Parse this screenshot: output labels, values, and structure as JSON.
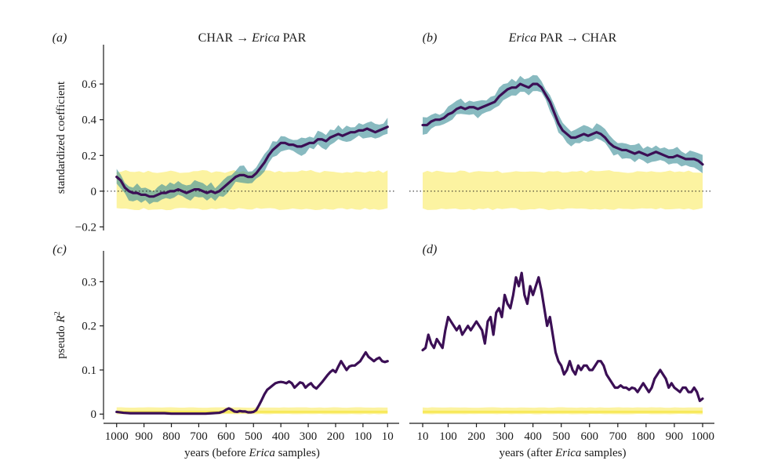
{
  "chart_data": [
    {
      "id": "a",
      "panel_label": "(a)",
      "type": "line",
      "title": [
        "CHAR → ",
        "Erica",
        " PAR"
      ],
      "ylabel": "standardized coefficient",
      "ylim": [
        -0.22,
        0.82
      ],
      "yticks": [
        -0.2,
        0,
        0.2,
        0.4,
        0.6
      ],
      "yticklabels": [
        "−0.2",
        "0",
        "0.2",
        "0.4",
        "0.6"
      ],
      "xlim": [
        1025,
        -15
      ],
      "xticks": [
        1000,
        900,
        800,
        700,
        600,
        500,
        400,
        300,
        200,
        100,
        10
      ],
      "xticklabels": [
        "1000",
        "900",
        "800",
        "700",
        "600",
        "500",
        "400",
        "300",
        "200",
        "100",
        "10"
      ],
      "reference_line": 0,
      "null_band": {
        "lower": -0.1,
        "upper": 0.11
      },
      "confidence_halfwidth": 0.04,
      "series_points": [
        [
          1000,
          0.08
        ],
        [
          985,
          0.06
        ],
        [
          970,
          0.02
        ],
        [
          955,
          0.0
        ],
        [
          940,
          -0.01
        ],
        [
          925,
          -0.01
        ],
        [
          910,
          -0.02
        ],
        [
          895,
          -0.02
        ],
        [
          880,
          -0.03
        ],
        [
          865,
          -0.03
        ],
        [
          850,
          -0.02
        ],
        [
          835,
          -0.01
        ],
        [
          820,
          -0.01
        ],
        [
          805,
          0.0
        ],
        [
          790,
          0.0
        ],
        [
          775,
          0.01
        ],
        [
          760,
          0.0
        ],
        [
          745,
          -0.01
        ],
        [
          730,
          0.0
        ],
        [
          715,
          0.01
        ],
        [
          700,
          0.01
        ],
        [
          685,
          0.0
        ],
        [
          670,
          -0.01
        ],
        [
          655,
          0.0
        ],
        [
          640,
          -0.01
        ],
        [
          625,
          0.0
        ],
        [
          610,
          0.02
        ],
        [
          595,
          0.04
        ],
        [
          580,
          0.06
        ],
        [
          565,
          0.08
        ],
        [
          550,
          0.09
        ],
        [
          535,
          0.09
        ],
        [
          520,
          0.08
        ],
        [
          505,
          0.08
        ],
        [
          490,
          0.1
        ],
        [
          475,
          0.13
        ],
        [
          460,
          0.16
        ],
        [
          445,
          0.2
        ],
        [
          430,
          0.23
        ],
        [
          415,
          0.25
        ],
        [
          400,
          0.27
        ],
        [
          385,
          0.27
        ],
        [
          370,
          0.26
        ],
        [
          355,
          0.26
        ],
        [
          340,
          0.25
        ],
        [
          325,
          0.25
        ],
        [
          310,
          0.26
        ],
        [
          295,
          0.27
        ],
        [
          280,
          0.27
        ],
        [
          265,
          0.29
        ],
        [
          250,
          0.29
        ],
        [
          235,
          0.28
        ],
        [
          220,
          0.3
        ],
        [
          205,
          0.31
        ],
        [
          190,
          0.32
        ],
        [
          175,
          0.31
        ],
        [
          160,
          0.32
        ],
        [
          145,
          0.33
        ],
        [
          130,
          0.33
        ],
        [
          115,
          0.34
        ],
        [
          100,
          0.34
        ],
        [
          85,
          0.35
        ],
        [
          70,
          0.34
        ],
        [
          55,
          0.33
        ],
        [
          40,
          0.34
        ],
        [
          25,
          0.35
        ],
        [
          10,
          0.36
        ]
      ]
    },
    {
      "id": "b",
      "panel_label": "(b)",
      "type": "line",
      "title": [
        "",
        "Erica",
        " PAR → CHAR"
      ],
      "ylim": [
        -0.22,
        0.82
      ],
      "yticks": [
        -0.2,
        0,
        0.2,
        0.4,
        0.6
      ],
      "xlim": [
        -15,
        1025
      ],
      "xticks": [
        10,
        100,
        200,
        300,
        400,
        500,
        600,
        700,
        800,
        900,
        1000
      ],
      "xticklabels": [
        "10",
        "100",
        "200",
        "300",
        "400",
        "500",
        "600",
        "700",
        "800",
        "900",
        "1000"
      ],
      "reference_line": 0,
      "null_band": {
        "lower": -0.1,
        "upper": 0.11
      },
      "confidence_halfwidth": 0.04,
      "series_points": [
        [
          10,
          0.37
        ],
        [
          25,
          0.37
        ],
        [
          40,
          0.39
        ],
        [
          55,
          0.4
        ],
        [
          70,
          0.4
        ],
        [
          85,
          0.41
        ],
        [
          100,
          0.43
        ],
        [
          115,
          0.44
        ],
        [
          130,
          0.46
        ],
        [
          145,
          0.47
        ],
        [
          160,
          0.46
        ],
        [
          175,
          0.47
        ],
        [
          190,
          0.47
        ],
        [
          205,
          0.46
        ],
        [
          220,
          0.47
        ],
        [
          235,
          0.48
        ],
        [
          250,
          0.49
        ],
        [
          265,
          0.5
        ],
        [
          280,
          0.53
        ],
        [
          295,
          0.55
        ],
        [
          310,
          0.57
        ],
        [
          325,
          0.58
        ],
        [
          340,
          0.58
        ],
        [
          355,
          0.6
        ],
        [
          370,
          0.59
        ],
        [
          385,
          0.58
        ],
        [
          400,
          0.6
        ],
        [
          415,
          0.6
        ],
        [
          430,
          0.58
        ],
        [
          445,
          0.54
        ],
        [
          460,
          0.5
        ],
        [
          475,
          0.44
        ],
        [
          490,
          0.38
        ],
        [
          505,
          0.34
        ],
        [
          520,
          0.32
        ],
        [
          535,
          0.3
        ],
        [
          550,
          0.3
        ],
        [
          565,
          0.31
        ],
        [
          580,
          0.32
        ],
        [
          595,
          0.31
        ],
        [
          610,
          0.32
        ],
        [
          625,
          0.33
        ],
        [
          640,
          0.32
        ],
        [
          655,
          0.3
        ],
        [
          670,
          0.27
        ],
        [
          685,
          0.25
        ],
        [
          700,
          0.24
        ],
        [
          715,
          0.23
        ],
        [
          730,
          0.23
        ],
        [
          745,
          0.22
        ],
        [
          760,
          0.21
        ],
        [
          775,
          0.22
        ],
        [
          790,
          0.21
        ],
        [
          805,
          0.2
        ],
        [
          820,
          0.21
        ],
        [
          835,
          0.22
        ],
        [
          850,
          0.21
        ],
        [
          865,
          0.2
        ],
        [
          880,
          0.19
        ],
        [
          895,
          0.19
        ],
        [
          910,
          0.2
        ],
        [
          925,
          0.19
        ],
        [
          940,
          0.18
        ],
        [
          955,
          0.18
        ],
        [
          970,
          0.18
        ],
        [
          985,
          0.17
        ],
        [
          1000,
          0.15
        ]
      ]
    },
    {
      "id": "c",
      "panel_label": "(c)",
      "type": "line",
      "ylabel_prefix": "pseudo ",
      "ylabel_var": "R",
      "ylabel_sup": "2",
      "ylim": [
        -0.012,
        0.37
      ],
      "yticks": [
        0,
        0.1,
        0.2,
        0.3
      ],
      "yticklabels": [
        "0",
        "0.1",
        "0.2",
        "0.3"
      ],
      "xlim": [
        1025,
        -15
      ],
      "xticks": [
        1000,
        900,
        800,
        700,
        600,
        500,
        400,
        300,
        200,
        100,
        10
      ],
      "xticklabels": [
        "1000",
        "900",
        "800",
        "700",
        "600",
        "500",
        "400",
        "300",
        "200",
        "100",
        "10"
      ],
      "xlabel": [
        "years (before ",
        "Erica",
        " samples)"
      ],
      "null_band": {
        "lower": 0.0,
        "upper": 0.015,
        "center": 0.005
      },
      "series_points": [
        [
          1000,
          0.005
        ],
        [
          975,
          0.003
        ],
        [
          950,
          0.002
        ],
        [
          925,
          0.002
        ],
        [
          900,
          0.002
        ],
        [
          875,
          0.002
        ],
        [
          850,
          0.002
        ],
        [
          825,
          0.002
        ],
        [
          800,
          0.001
        ],
        [
          775,
          0.001
        ],
        [
          750,
          0.001
        ],
        [
          725,
          0.001
        ],
        [
          700,
          0.001
        ],
        [
          675,
          0.001
        ],
        [
          650,
          0.002
        ],
        [
          625,
          0.003
        ],
        [
          610,
          0.006
        ],
        [
          600,
          0.01
        ],
        [
          590,
          0.013
        ],
        [
          580,
          0.01
        ],
        [
          570,
          0.006
        ],
        [
          560,
          0.005
        ],
        [
          550,
          0.007
        ],
        [
          540,
          0.006
        ],
        [
          530,
          0.006
        ],
        [
          520,
          0.004
        ],
        [
          510,
          0.004
        ],
        [
          500,
          0.005
        ],
        [
          490,
          0.009
        ],
        [
          480,
          0.02
        ],
        [
          470,
          0.032
        ],
        [
          460,
          0.045
        ],
        [
          450,
          0.055
        ],
        [
          440,
          0.06
        ],
        [
          430,
          0.065
        ],
        [
          420,
          0.07
        ],
        [
          410,
          0.072
        ],
        [
          400,
          0.073
        ],
        [
          390,
          0.072
        ],
        [
          380,
          0.07
        ],
        [
          370,
          0.074
        ],
        [
          360,
          0.07
        ],
        [
          350,
          0.06
        ],
        [
          340,
          0.066
        ],
        [
          330,
          0.072
        ],
        [
          320,
          0.07
        ],
        [
          310,
          0.06
        ],
        [
          300,
          0.066
        ],
        [
          290,
          0.07
        ],
        [
          280,
          0.062
        ],
        [
          270,
          0.058
        ],
        [
          260,
          0.065
        ],
        [
          250,
          0.072
        ],
        [
          240,
          0.08
        ],
        [
          230,
          0.088
        ],
        [
          220,
          0.095
        ],
        [
          210,
          0.1
        ],
        [
          200,
          0.095
        ],
        [
          190,
          0.108
        ],
        [
          180,
          0.12
        ],
        [
          170,
          0.11
        ],
        [
          160,
          0.1
        ],
        [
          150,
          0.108
        ],
        [
          140,
          0.11
        ],
        [
          130,
          0.11
        ],
        [
          120,
          0.115
        ],
        [
          110,
          0.12
        ],
        [
          100,
          0.13
        ],
        [
          90,
          0.14
        ],
        [
          80,
          0.13
        ],
        [
          70,
          0.125
        ],
        [
          60,
          0.12
        ],
        [
          50,
          0.125
        ],
        [
          40,
          0.128
        ],
        [
          30,
          0.12
        ],
        [
          20,
          0.118
        ],
        [
          10,
          0.12
        ]
      ]
    },
    {
      "id": "d",
      "panel_label": "(d)",
      "type": "line",
      "ylim": [
        -0.012,
        0.37
      ],
      "yticks": [
        0,
        0.1,
        0.2,
        0.3
      ],
      "xlim": [
        -15,
        1025
      ],
      "xticks": [
        10,
        100,
        200,
        300,
        400,
        500,
        600,
        700,
        800,
        900,
        1000
      ],
      "xticklabels": [
        "10",
        "100",
        "200",
        "300",
        "400",
        "500",
        "600",
        "700",
        "800",
        "900",
        "1000"
      ],
      "xlabel": [
        "years (after ",
        "Erica",
        " samples)"
      ],
      "null_band": {
        "lower": 0.0,
        "upper": 0.015,
        "center": 0.005
      },
      "series_points": [
        [
          10,
          0.145
        ],
        [
          20,
          0.15
        ],
        [
          30,
          0.18
        ],
        [
          40,
          0.16
        ],
        [
          50,
          0.15
        ],
        [
          60,
          0.17
        ],
        [
          70,
          0.16
        ],
        [
          80,
          0.15
        ],
        [
          90,
          0.19
        ],
        [
          100,
          0.22
        ],
        [
          110,
          0.21
        ],
        [
          120,
          0.2
        ],
        [
          130,
          0.19
        ],
        [
          140,
          0.2
        ],
        [
          150,
          0.18
        ],
        [
          160,
          0.19
        ],
        [
          170,
          0.2
        ],
        [
          180,
          0.19
        ],
        [
          190,
          0.2
        ],
        [
          200,
          0.21
        ],
        [
          210,
          0.2
        ],
        [
          220,
          0.19
        ],
        [
          230,
          0.16
        ],
        [
          240,
          0.21
        ],
        [
          250,
          0.22
        ],
        [
          260,
          0.18
        ],
        [
          270,
          0.23
        ],
        [
          280,
          0.24
        ],
        [
          290,
          0.22
        ],
        [
          300,
          0.27
        ],
        [
          310,
          0.25
        ],
        [
          320,
          0.24
        ],
        [
          330,
          0.27
        ],
        [
          340,
          0.31
        ],
        [
          350,
          0.29
        ],
        [
          360,
          0.32
        ],
        [
          370,
          0.27
        ],
        [
          380,
          0.25
        ],
        [
          390,
          0.29
        ],
        [
          400,
          0.27
        ],
        [
          410,
          0.29
        ],
        [
          420,
          0.31
        ],
        [
          430,
          0.28
        ],
        [
          440,
          0.24
        ],
        [
          450,
          0.2
        ],
        [
          460,
          0.22
        ],
        [
          470,
          0.18
        ],
        [
          480,
          0.14
        ],
        [
          490,
          0.12
        ],
        [
          500,
          0.11
        ],
        [
          510,
          0.09
        ],
        [
          520,
          0.1
        ],
        [
          530,
          0.12
        ],
        [
          540,
          0.1
        ],
        [
          550,
          0.09
        ],
        [
          560,
          0.11
        ],
        [
          570,
          0.1
        ],
        [
          580,
          0.11
        ],
        [
          590,
          0.11
        ],
        [
          600,
          0.1
        ],
        [
          610,
          0.1
        ],
        [
          620,
          0.11
        ],
        [
          630,
          0.12
        ],
        [
          640,
          0.12
        ],
        [
          650,
          0.11
        ],
        [
          660,
          0.09
        ],
        [
          670,
          0.08
        ],
        [
          680,
          0.07
        ],
        [
          690,
          0.06
        ],
        [
          700,
          0.06
        ],
        [
          710,
          0.065
        ],
        [
          720,
          0.06
        ],
        [
          730,
          0.06
        ],
        [
          740,
          0.055
        ],
        [
          750,
          0.06
        ],
        [
          760,
          0.058
        ],
        [
          770,
          0.05
        ],
        [
          780,
          0.06
        ],
        [
          790,
          0.07
        ],
        [
          800,
          0.06
        ],
        [
          810,
          0.05
        ],
        [
          820,
          0.06
        ],
        [
          830,
          0.08
        ],
        [
          840,
          0.09
        ],
        [
          850,
          0.1
        ],
        [
          860,
          0.09
        ],
        [
          870,
          0.08
        ],
        [
          880,
          0.06
        ],
        [
          890,
          0.07
        ],
        [
          900,
          0.06
        ],
        [
          910,
          0.055
        ],
        [
          920,
          0.05
        ],
        [
          930,
          0.06
        ],
        [
          940,
          0.06
        ],
        [
          950,
          0.05
        ],
        [
          960,
          0.05
        ],
        [
          970,
          0.06
        ],
        [
          980,
          0.05
        ],
        [
          990,
          0.03
        ],
        [
          1000,
          0.035
        ]
      ]
    }
  ],
  "colors": {
    "line": "#3b0f55",
    "confidence": "#3f8f9a",
    "null_band": "#fcf3a1",
    "null_center": "#f7e95a",
    "axis": "#1a1a1a"
  }
}
